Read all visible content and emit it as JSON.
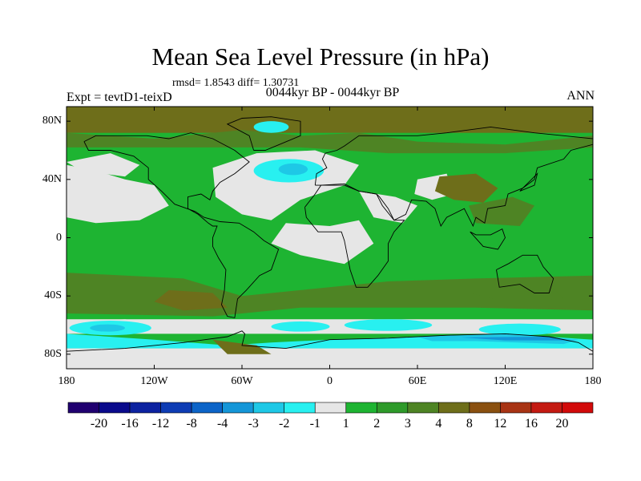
{
  "chart_data": {
    "type": "heatmap",
    "title": "Mean Sea Level Pressure (in hPa)",
    "rmsd_label": "rmsd= 1.8543  diff= 1.30731",
    "subtitle": "0044kyr BP - 0044kyr BP",
    "left_label": "Expt = tevtD1-teixD",
    "right_label": "ANN",
    "x_range": [
      -180,
      180
    ],
    "y_range": [
      -90,
      90
    ],
    "x_ticks": [
      {
        "value": -180,
        "label": "180"
      },
      {
        "value": -120,
        "label": "120W"
      },
      {
        "value": -60,
        "label": "60W"
      },
      {
        "value": 0,
        "label": "0"
      },
      {
        "value": 60,
        "label": "60E"
      },
      {
        "value": 120,
        "label": "120E"
      },
      {
        "value": 180,
        "label": "180"
      }
    ],
    "y_ticks": [
      {
        "value": 80,
        "label": "80N"
      },
      {
        "value": 40,
        "label": "40N"
      },
      {
        "value": 0,
        "label": "0"
      },
      {
        "value": -40,
        "label": "40S"
      },
      {
        "value": -80,
        "label": "80S"
      }
    ],
    "colorbar": {
      "labels": [
        "-20",
        "-16",
        "-12",
        "-8",
        "-4",
        "-3",
        "-2",
        "-1",
        "1",
        "2",
        "3",
        "4",
        "8",
        "12",
        "16",
        "20"
      ],
      "colors": [
        "#200070",
        "#0a0a8c",
        "#0c22a0",
        "#0e3cb4",
        "#0c64c8",
        "#1496d8",
        "#1ec8e6",
        "#28f0f0",
        "#e6e6e6",
        "#1eb432",
        "#2e9a2a",
        "#4e8424",
        "#6e6e1a",
        "#8a5010",
        "#a83414",
        "#c41a12",
        "#d20a0a"
      ]
    }
  }
}
